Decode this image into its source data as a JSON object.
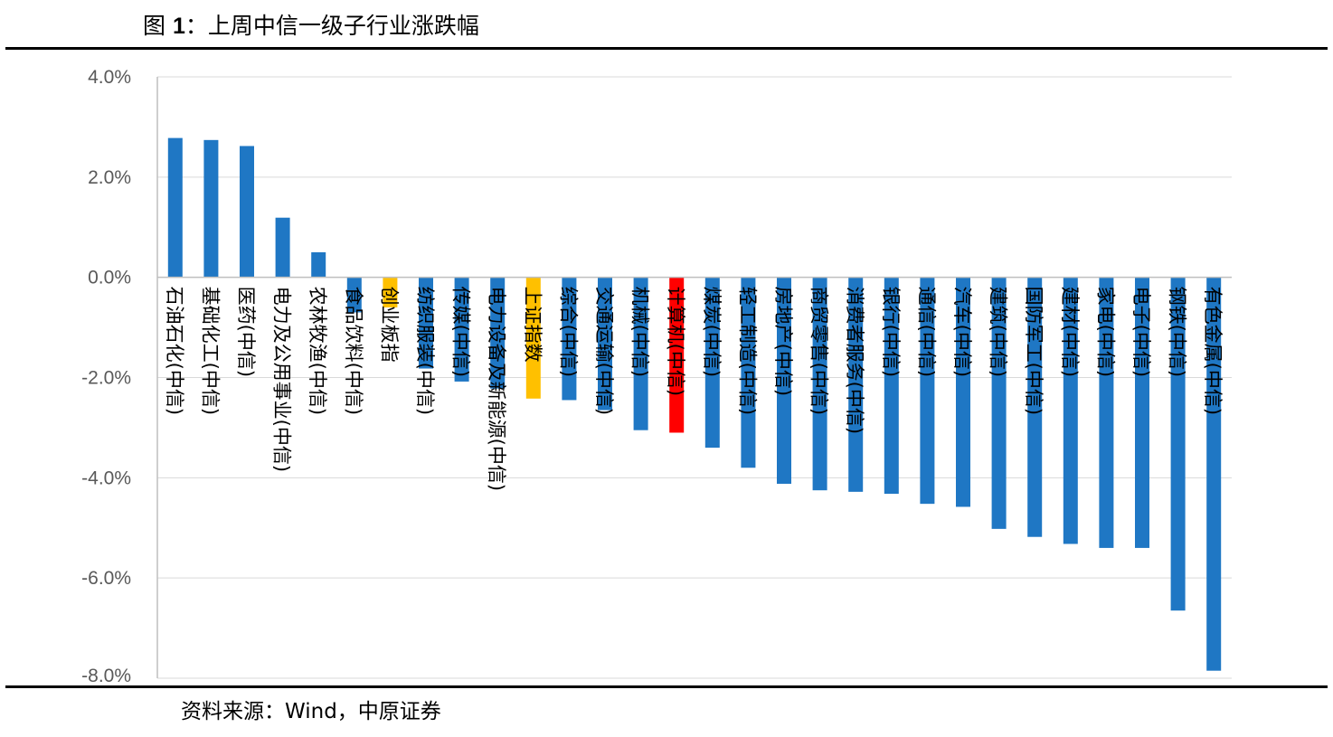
{
  "figure": {
    "title_prefix": "图 ",
    "title_number": "1",
    "title_text": "：上周中信一级子行业涨跌幅",
    "source": "资料来源：Wind，中原证券"
  },
  "colors": {
    "industry": "#1f77c4",
    "index": "#ffc000",
    "highlight": "#ff0000"
  },
  "chart_data": {
    "type": "bar",
    "title": "",
    "xlabel": "",
    "ylabel": "",
    "ylim": [
      -0.08,
      0.04
    ],
    "yticks": [
      0.04,
      0.02,
      0.0,
      -0.02,
      -0.04,
      -0.06,
      -0.08
    ],
    "ytick_labels": [
      "4.0%",
      "2.0%",
      "0.0%",
      "-2.0%",
      "-4.0%",
      "-6.0%",
      "-8.0%"
    ],
    "grid": true,
    "categories": [
      "石油石化(中信)",
      "基础化工(中信)",
      "医药(中信)",
      "电力及公用事业(中信)",
      "农林牧渔(中信)",
      "食品饮料(中信)",
      "创业板指",
      "纺织服装(中信)",
      "传媒(中信)",
      "电力设备及新能源(中信)",
      "上证指数",
      "综合(中信)",
      "交通运输(中信)",
      "机械(中信)",
      "计算机(中信)",
      "煤炭(中信)",
      "轻工制造(中信)",
      "房地产(中信)",
      "商贸零售(中信)",
      "消费者服务(中信)",
      "银行(中信)",
      "通信(中信)",
      "汽车(中信)",
      "建筑(中信)",
      "国防军工(中信)",
      "建材(中信)",
      "家电(中信)",
      "电子(中信)",
      "钢铁(中信)",
      "有色金属(中信)"
    ],
    "values": [
      0.0278,
      0.0274,
      0.0262,
      0.0119,
      0.005,
      -0.007,
      -0.006,
      -0.0182,
      -0.0208,
      -0.0222,
      -0.0242,
      -0.0245,
      -0.0265,
      -0.0305,
      -0.031,
      -0.034,
      -0.038,
      -0.0412,
      -0.0425,
      -0.0428,
      -0.0432,
      -0.0452,
      -0.0458,
      -0.0502,
      -0.0518,
      -0.0532,
      -0.054,
      -0.054,
      -0.0665,
      -0.0785
    ],
    "bar_kinds": [
      "industry",
      "industry",
      "industry",
      "industry",
      "industry",
      "industry",
      "index",
      "industry",
      "industry",
      "industry",
      "index",
      "industry",
      "industry",
      "industry",
      "highlight",
      "industry",
      "industry",
      "industry",
      "industry",
      "industry",
      "industry",
      "industry",
      "industry",
      "industry",
      "industry",
      "industry",
      "industry",
      "industry",
      "industry",
      "industry"
    ]
  }
}
